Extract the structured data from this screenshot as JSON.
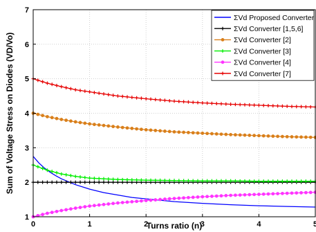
{
  "chart_data": {
    "type": "line",
    "xlabel": "Turns ratio (n)",
    "ylabel": "Sum of Voltage Stress on Diodes (VD/Vo)",
    "xlim": [
      0,
      5
    ],
    "ylim": [
      1,
      7
    ],
    "xticks": [
      "0",
      "1",
      "2",
      "3",
      "4",
      "5"
    ],
    "yticks": [
      "1",
      "2",
      "3",
      "4",
      "5",
      "6",
      "7"
    ],
    "grid": true,
    "legend_position": "top-right",
    "series": [
      {
        "name": "ΣVd Proposed Converter",
        "color": "#0000ff",
        "marker": "none",
        "x": [
          0,
          0.1,
          0.2,
          0.3,
          0.4,
          0.5,
          0.75,
          1,
          1.25,
          1.5,
          1.75,
          2,
          2.5,
          3,
          3.5,
          4,
          4.5,
          5
        ],
        "y": [
          2.75,
          2.56,
          2.41,
          2.29,
          2.19,
          2.1,
          1.93,
          1.8,
          1.7,
          1.63,
          1.56,
          1.52,
          1.44,
          1.39,
          1.35,
          1.32,
          1.3,
          1.28
        ]
      },
      {
        "name": "ΣVd Converter [1,5,6]",
        "color": "#000000",
        "marker": "plus",
        "x": [
          0,
          0.5,
          1,
          1.5,
          2,
          2.5,
          3,
          3.5,
          4,
          4.5,
          5
        ],
        "y": [
          2,
          2,
          2,
          2,
          2,
          2,
          2,
          2,
          2,
          2,
          2
        ]
      },
      {
        "name": "ΣVd Converter [2]",
        "color": "#d97f1a",
        "marker": "circle",
        "x": [
          0,
          0.25,
          0.5,
          0.75,
          1,
          1.5,
          2,
          2.5,
          3,
          3.5,
          4,
          4.5,
          5
        ],
        "y": [
          4.0,
          3.9,
          3.82,
          3.75,
          3.69,
          3.6,
          3.52,
          3.46,
          3.42,
          3.38,
          3.35,
          3.32,
          3.3
        ]
      },
      {
        "name": "ΣVd Converter [3]",
        "color": "#00ee00",
        "marker": "plus",
        "x": [
          0,
          0.25,
          0.5,
          0.75,
          1,
          1.25,
          1.5,
          2,
          2.5,
          3,
          3.5,
          4,
          4.5,
          5
        ],
        "y": [
          2.5,
          2.35,
          2.24,
          2.17,
          2.12,
          2.1,
          2.08,
          2.06,
          2.05,
          2.04,
          2.04,
          2.03,
          2.03,
          2.03
        ]
      },
      {
        "name": "ΣVd Converter [4]",
        "color": "#ff33ff",
        "marker": "circle",
        "x": [
          0,
          0.25,
          0.5,
          0.75,
          1,
          1.5,
          2,
          2.5,
          3,
          3.5,
          4,
          4.5,
          5
        ],
        "y": [
          1.0,
          1.1,
          1.18,
          1.25,
          1.31,
          1.4,
          1.47,
          1.53,
          1.58,
          1.62,
          1.65,
          1.68,
          1.71
        ]
      },
      {
        "name": "ΣVd Converter [7]",
        "color": "#e60000",
        "marker": "plus",
        "x": [
          0,
          0.25,
          0.5,
          0.75,
          1,
          1.5,
          2,
          2.5,
          3,
          3.5,
          4,
          4.5,
          5
        ],
        "y": [
          5.0,
          4.87,
          4.77,
          4.68,
          4.62,
          4.5,
          4.42,
          4.35,
          4.3,
          4.26,
          4.23,
          4.2,
          4.18
        ]
      }
    ]
  }
}
